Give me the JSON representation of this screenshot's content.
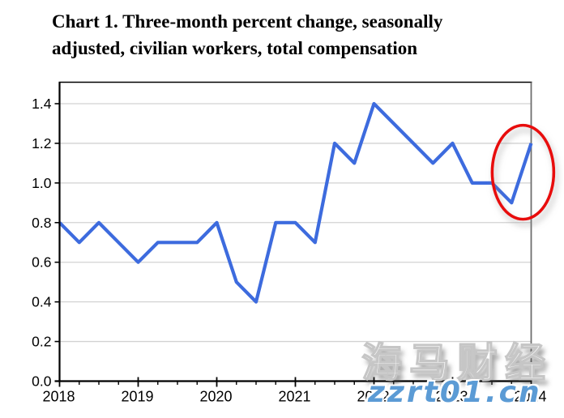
{
  "title_lines": [
    "Chart 1. Three-month percent change, seasonally",
    "adjusted, civilian workers, total compensation"
  ],
  "watermarks": {
    "chinese": "海马财经",
    "url": "zzrt01.cn"
  },
  "chart_data": {
    "type": "line",
    "title": "Chart 1. Three-month percent change, seasonally adjusted, civilian workers, total compensation",
    "series_name": "Three-month percent change, total compensation, civilian workers",
    "x": [
      2018.0,
      2018.25,
      2018.5,
      2018.75,
      2019.0,
      2019.25,
      2019.5,
      2019.75,
      2020.0,
      2020.25,
      2020.5,
      2020.75,
      2021.0,
      2021.25,
      2021.5,
      2021.75,
      2022.0,
      2022.25,
      2022.5,
      2022.75,
      2023.0,
      2023.25,
      2023.5,
      2023.75,
      2024.0
    ],
    "values": [
      0.8,
      0.7,
      0.8,
      0.7,
      0.6,
      0.7,
      0.7,
      0.7,
      0.8,
      0.5,
      0.4,
      0.8,
      0.8,
      0.7,
      1.2,
      1.1,
      1.4,
      1.3,
      1.2,
      1.1,
      1.2,
      1.0,
      1.0,
      0.9,
      1.2
    ],
    "xlabel": "",
    "ylabel": "",
    "xlim": [
      2018,
      2024
    ],
    "ylim": [
      0.0,
      1.5
    ],
    "x_tick_labels": [
      "2018",
      "2019",
      "2020",
      "2021",
      "2022",
      "2023",
      "2024"
    ],
    "x_tick_values": [
      2018,
      2019,
      2020,
      2021,
      2022,
      2023,
      2024
    ],
    "x_minor_tick_step": 0.25,
    "y_tick_labels": [
      "0.0",
      "0.2",
      "0.4",
      "0.6",
      "0.8",
      "1.0",
      "1.2",
      "1.4"
    ],
    "y_tick_values": [
      0.0,
      0.2,
      0.4,
      0.6,
      0.8,
      1.0,
      1.2,
      1.4
    ],
    "grid": true,
    "legend": "none",
    "line_color": "#3D6BDE",
    "grid_color": "#d2d2d2",
    "axis_color": "#000000",
    "right_border_color": "#6e6e6e",
    "annotation": {
      "shape": "ellipse",
      "color": "#E80D0D",
      "around_points": "last two data points",
      "circled_values": [
        0.9,
        1.2
      ],
      "circled_x": [
        2023.75,
        2024.0
      ],
      "note": "red ellipse with soft gray drop shadow highlighting 2023 Q4 = 0.9 and 2024 Q1 = 1.2"
    }
  }
}
